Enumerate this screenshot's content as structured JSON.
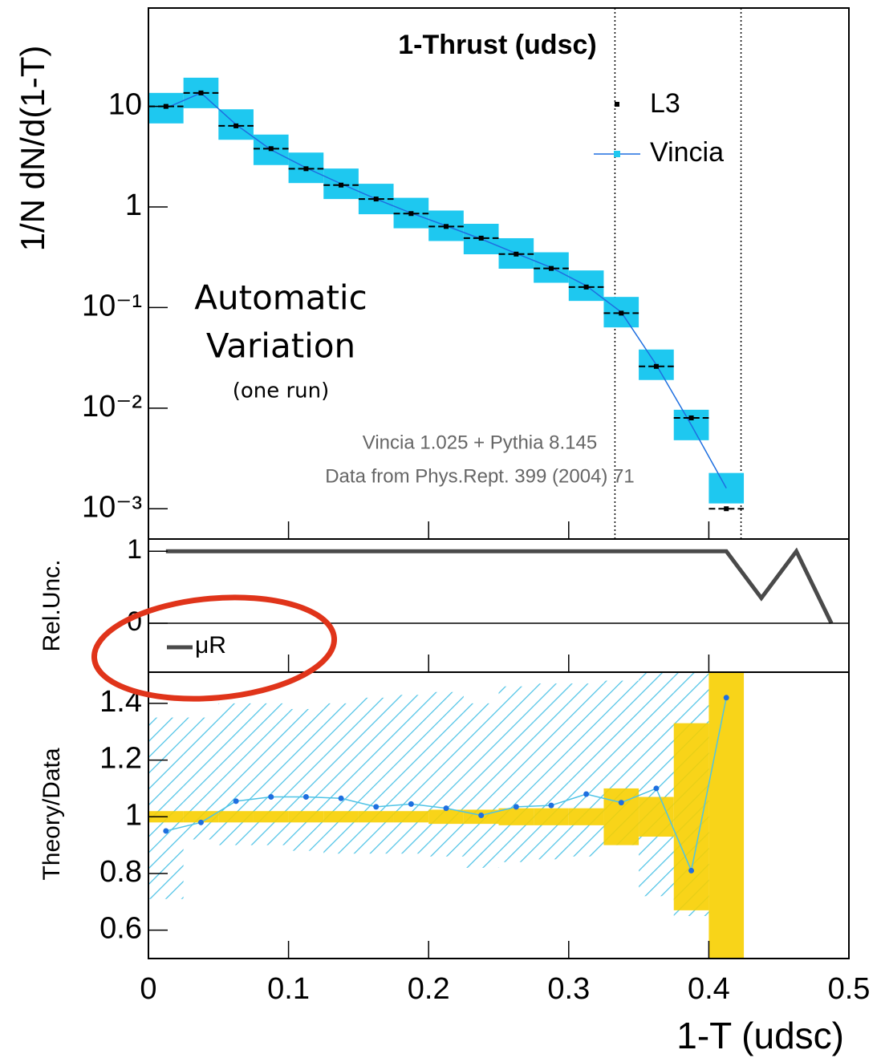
{
  "chart_data": [
    {
      "type": "log-line",
      "title": "1-Thrust (udsc)",
      "ylabel": "1/N dN/d(1-T)",
      "annotations": [
        "Automatic",
        "Variation",
        "(one run)",
        "Vincia 1.025 + Pythia 8.145",
        "Data from Phys.Rept. 399 (2004) 71"
      ],
      "xlim": [
        0,
        0.5
      ],
      "ylim": [
        0.0005,
        95
      ],
      "log_y": true,
      "yticks": [
        {
          "value": 0.001,
          "label": "10⁻³"
        },
        {
          "value": 0.01,
          "label": "10⁻²"
        },
        {
          "value": 0.1,
          "label": "10⁻¹"
        },
        1,
        10
      ],
      "vlines": [
        0.333,
        0.423
      ],
      "x": [
        0.0125,
        0.0375,
        0.0625,
        0.0875,
        0.1125,
        0.1375,
        0.1625,
        0.1875,
        0.2125,
        0.2375,
        0.2625,
        0.2875,
        0.3125,
        0.3375,
        0.3625,
        0.3875,
        0.4125
      ],
      "series": [
        {
          "name": "L3",
          "color": "#000000",
          "values": [
            10,
            13.6,
            6.4,
            3.8,
            2.4,
            1.65,
            1.2,
            0.86,
            0.64,
            0.49,
            0.34,
            0.245,
            0.16,
            0.088,
            0.026,
            0.008,
            0.001
          ]
        },
        {
          "name": "Vincia",
          "color": "#1e6fe0",
          "band_color": "#1ec8f0",
          "values": [
            9.6,
            13.6,
            6.6,
            3.7,
            2.45,
            1.7,
            1.2,
            0.87,
            0.65,
            0.48,
            0.345,
            0.25,
            0.165,
            0.09,
            0.027,
            0.0068,
            0.0016
          ]
        }
      ]
    },
    {
      "type": "line",
      "ylabel": "Rel.Unc.",
      "xlim": [
        0,
        0.5
      ],
      "ylim": [
        -0.68,
        1.17
      ],
      "yticks": [
        0,
        1
      ],
      "x": [
        0.0125,
        0.0375,
        0.0625,
        0.0875,
        0.1125,
        0.1375,
        0.1625,
        0.1875,
        0.2125,
        0.2375,
        0.2625,
        0.2875,
        0.3125,
        0.3375,
        0.3625,
        0.3875,
        0.4125,
        0.4375,
        0.4625,
        0.4875
      ],
      "series": [
        {
          "name": "μR",
          "color": "#4a4a4a",
          "values": [
            1,
            1,
            1,
            1,
            1,
            1,
            1,
            1,
            1,
            1,
            1,
            1,
            1,
            1,
            1,
            1,
            1,
            0.35,
            1,
            0
          ]
        }
      ]
    },
    {
      "type": "ratio",
      "ylabel": "Theory/Data",
      "xlabel": "1-T (udsc)",
      "xlim": [
        0,
        0.5
      ],
      "xticks": [
        0,
        0.1,
        0.2,
        0.3,
        0.4,
        0.5
      ],
      "ylim": [
        0.5,
        1.51
      ],
      "yticks": [
        0.6,
        0.8,
        1,
        1.2,
        1.4
      ],
      "x": [
        0.0125,
        0.0375,
        0.0625,
        0.0875,
        0.1125,
        0.1375,
        0.1625,
        0.1875,
        0.2125,
        0.2375,
        0.2625,
        0.2875,
        0.3125,
        0.3375,
        0.3625,
        0.3875,
        0.4125
      ],
      "color": "#1e6fe0",
      "values": [
        0.95,
        0.98,
        1.055,
        1.07,
        1.07,
        1.065,
        1.035,
        1.045,
        1.03,
        1.005,
        1.035,
        1.04,
        1.08,
        1.05,
        1.1,
        0.81,
        1.42
      ],
      "data_band_color": "#f7cf00",
      "data_band": [
        0.02,
        0.02,
        0.02,
        0.02,
        0.02,
        0.02,
        0.02,
        0.02,
        0.025,
        0.025,
        0.03,
        0.03,
        0.03,
        0.1,
        0.07,
        0.33,
        0.6
      ],
      "theory_color": "#4ec3e6",
      "theory_low": [
        0.71,
        0.92,
        0.9,
        0.9,
        0.88,
        0.87,
        0.87,
        0.87,
        0.86,
        0.82,
        0.84,
        0.85,
        0.86,
        0.9,
        0.72,
        0.65,
        null
      ],
      "theory_high": [
        1.35,
        1.35,
        1.4,
        1.4,
        1.38,
        1.4,
        1.42,
        1.43,
        1.44,
        1.4,
        1.46,
        1.47,
        1.47,
        1.48,
        1.51,
        1.51,
        null
      ]
    }
  ]
}
